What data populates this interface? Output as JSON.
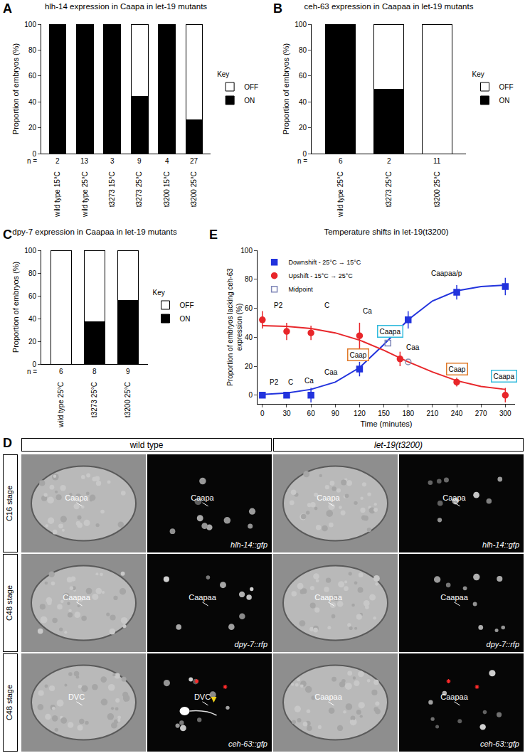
{
  "chart_data": [
    {
      "panel_label": "A",
      "type": "bar",
      "stacked": true,
      "title": "hlh-14 expression in Caapa in let-19 mutants",
      "ylabel": "Proportion of embryos (%)",
      "categories": [
        "wild type 15°C",
        "wild type 25°C",
        "t3273 15°C",
        "t3273 25°C",
        "t3200 15°C",
        "t3200 25°C"
      ],
      "series": [
        {
          "name": "ON",
          "color": "#000000",
          "values": [
            100,
            100,
            100,
            44,
            100,
            26
          ]
        },
        {
          "name": "OFF",
          "color": "#ffffff",
          "values": [
            0,
            0,
            0,
            56,
            0,
            74
          ]
        }
      ],
      "n_label": "n =",
      "n": [
        2,
        13,
        3,
        9,
        4,
        27
      ],
      "legend_title": "Key",
      "legend": "right",
      "ylim": [
        0,
        100
      ],
      "yticks": [
        0,
        20,
        40,
        60,
        80,
        100
      ]
    },
    {
      "panel_label": "B",
      "type": "bar",
      "stacked": true,
      "title": "ceh-63 expression in Caapaa in let-19 mutants",
      "ylabel": "Proportion of embryos (%)",
      "categories": [
        "wild type 25°C",
        "t3273 25°C",
        "t3200 25°C"
      ],
      "series": [
        {
          "name": "ON",
          "color": "#000000",
          "values": [
            100,
            50,
            0
          ]
        },
        {
          "name": "OFF",
          "color": "#ffffff",
          "values": [
            0,
            50,
            100
          ]
        }
      ],
      "n_label": "n =",
      "n": [
        6,
        2,
        11
      ],
      "legend_title": "Key",
      "legend": "right",
      "ylim": [
        0,
        100
      ],
      "yticks": [
        0,
        20,
        40,
        60,
        80,
        100
      ]
    },
    {
      "panel_label": "C",
      "type": "bar",
      "stacked": true,
      "title": "dpy-7 expression in Caapaa in let-19 mutants",
      "ylabel": "Proportion of embryos (%)",
      "categories": [
        "wild type 25°C",
        "t3273 25°C",
        "t3200 25°C"
      ],
      "series": [
        {
          "name": "ON",
          "color": "#000000",
          "values": [
            0,
            37.5,
            56
          ]
        },
        {
          "name": "OFF",
          "color": "#ffffff",
          "values": [
            100,
            62.5,
            44
          ]
        }
      ],
      "n_label": "n =",
      "n": [
        6,
        8,
        9
      ],
      "legend_title": "Key",
      "legend": "right",
      "ylim": [
        0,
        100
      ],
      "yticks": [
        0,
        20,
        40,
        60,
        80,
        100
      ]
    },
    {
      "panel_label": "E",
      "type": "scatter",
      "title": "Temperature shifts in let-19(t3200)",
      "xlabel": "Time (minutes)",
      "ylabel": [
        "Proportion of embryos lacking ceh-63",
        "expression (%)"
      ],
      "xlim": [
        -6,
        312
      ],
      "xticks": [
        0,
        30,
        60,
        90,
        120,
        150,
        180,
        210,
        240,
        270,
        300
      ],
      "ylim": [
        -6,
        100
      ],
      "yticks": [
        0,
        20,
        40,
        60,
        80,
        100
      ],
      "legend": "upper left",
      "series": [
        {
          "type": "line",
          "color": "#2233dd",
          "x": [
            0,
            30,
            60,
            90,
            120,
            150,
            180,
            210,
            240,
            270,
            300
          ],
          "values": [
            0.5,
            1.5,
            4,
            9,
            19,
            35,
            52,
            65,
            72,
            75,
            76
          ]
        },
        {
          "type": "line",
          "color": "#e8262a",
          "x": [
            0,
            30,
            60,
            90,
            120,
            150,
            180,
            210,
            240,
            270,
            300
          ],
          "values": [
            48,
            47.5,
            46,
            43,
            38,
            31,
            23,
            16,
            10,
            6,
            4
          ]
        },
        {
          "name": "Downshift - 25°C → 15°C",
          "type": "scatter",
          "marker": "square",
          "color": "#2233dd",
          "x": [
            0,
            30,
            60,
            120,
            180,
            240,
            300
          ],
          "values": [
            0,
            0,
            0,
            18,
            52,
            71,
            75
          ],
          "error": [
            0,
            0,
            5,
            5,
            6,
            5,
            6
          ]
        },
        {
          "name": "Upshift - 15°C → 25°C",
          "type": "scatter",
          "marker": "circle",
          "color": "#e8262a",
          "x": [
            0,
            30,
            60,
            120,
            170,
            240,
            300
          ],
          "values": [
            52,
            44,
            43,
            41,
            25,
            9,
            0
          ],
          "error": [
            6,
            6,
            5,
            9,
            5,
            3,
            5
          ]
        },
        {
          "name": "Midpoint",
          "type": "scatter",
          "marker": "square-open",
          "color": "#7f86b8",
          "x": [
            155
          ],
          "values": [
            36
          ]
        },
        {
          "type": "scatter",
          "marker": "circle-open",
          "color": "#8a8fb0",
          "x": [
            180
          ],
          "values": [
            23
          ]
        }
      ],
      "annotations": [
        {
          "text": "P2",
          "x": 20,
          "y": 62
        },
        {
          "text": "C",
          "x": 80,
          "y": 62
        },
        {
          "text": "Ca",
          "x": 130,
          "y": 58
        },
        {
          "text": "Caapa",
          "x": 158,
          "y": 44,
          "color": "#33bbdd"
        },
        {
          "text": "Caa",
          "x": 186,
          "y": 33
        },
        {
          "text": "Caapaa/p",
          "x": 228,
          "y": 84
        },
        {
          "text": "P2",
          "x": 15,
          "y": 9
        },
        {
          "text": "C",
          "x": 35,
          "y": 9
        },
        {
          "text": "Ca",
          "x": 58,
          "y": 10
        },
        {
          "text": "Caa",
          "x": 85,
          "y": 16
        },
        {
          "text": "Caap",
          "x": 118,
          "y": 28,
          "color": "#e07a2a"
        },
        {
          "text": "Caap",
          "x": 240,
          "y": 18,
          "color": "#e07a2a"
        },
        {
          "text": "Caapa",
          "x": 298,
          "y": 13,
          "color": "#33bbdd"
        }
      ]
    }
  ],
  "panel_D": {
    "panel_label": "D",
    "headers": [
      "wild type",
      "let-19(t3200)"
    ],
    "rows": [
      {
        "stage": "C16 stage",
        "images": [
          {
            "kind": "DIC",
            "label": "Caapa"
          },
          {
            "kind": "fluorescence",
            "label": "Caapa",
            "reporter": "hlh-14::gfp"
          },
          {
            "kind": "DIC",
            "label": "Caapa"
          },
          {
            "kind": "fluorescence",
            "label": "Caapa",
            "reporter": "hlh-14::gfp"
          }
        ]
      },
      {
        "stage": "C48 stage",
        "images": [
          {
            "kind": "DIC",
            "label": "Caapaa"
          },
          {
            "kind": "fluorescence",
            "label": "Caapaa",
            "reporter": "dpy-7::rfp"
          },
          {
            "kind": "DIC",
            "label": "Caapaa"
          },
          {
            "kind": "fluorescence",
            "label": "Caapaa",
            "reporter": "dpy-7::rfp"
          }
        ]
      },
      {
        "stage": "C48 stage",
        "images": [
          {
            "kind": "DIC",
            "label": "DVC"
          },
          {
            "kind": "fluorescence",
            "label": "DVC",
            "reporter": "ceh-63::gfp"
          },
          {
            "kind": "DIC",
            "label": "Caapaa"
          },
          {
            "kind": "fluorescence",
            "label": "Caapaa",
            "reporter": "ceh-63::gfp"
          }
        ]
      }
    ]
  }
}
